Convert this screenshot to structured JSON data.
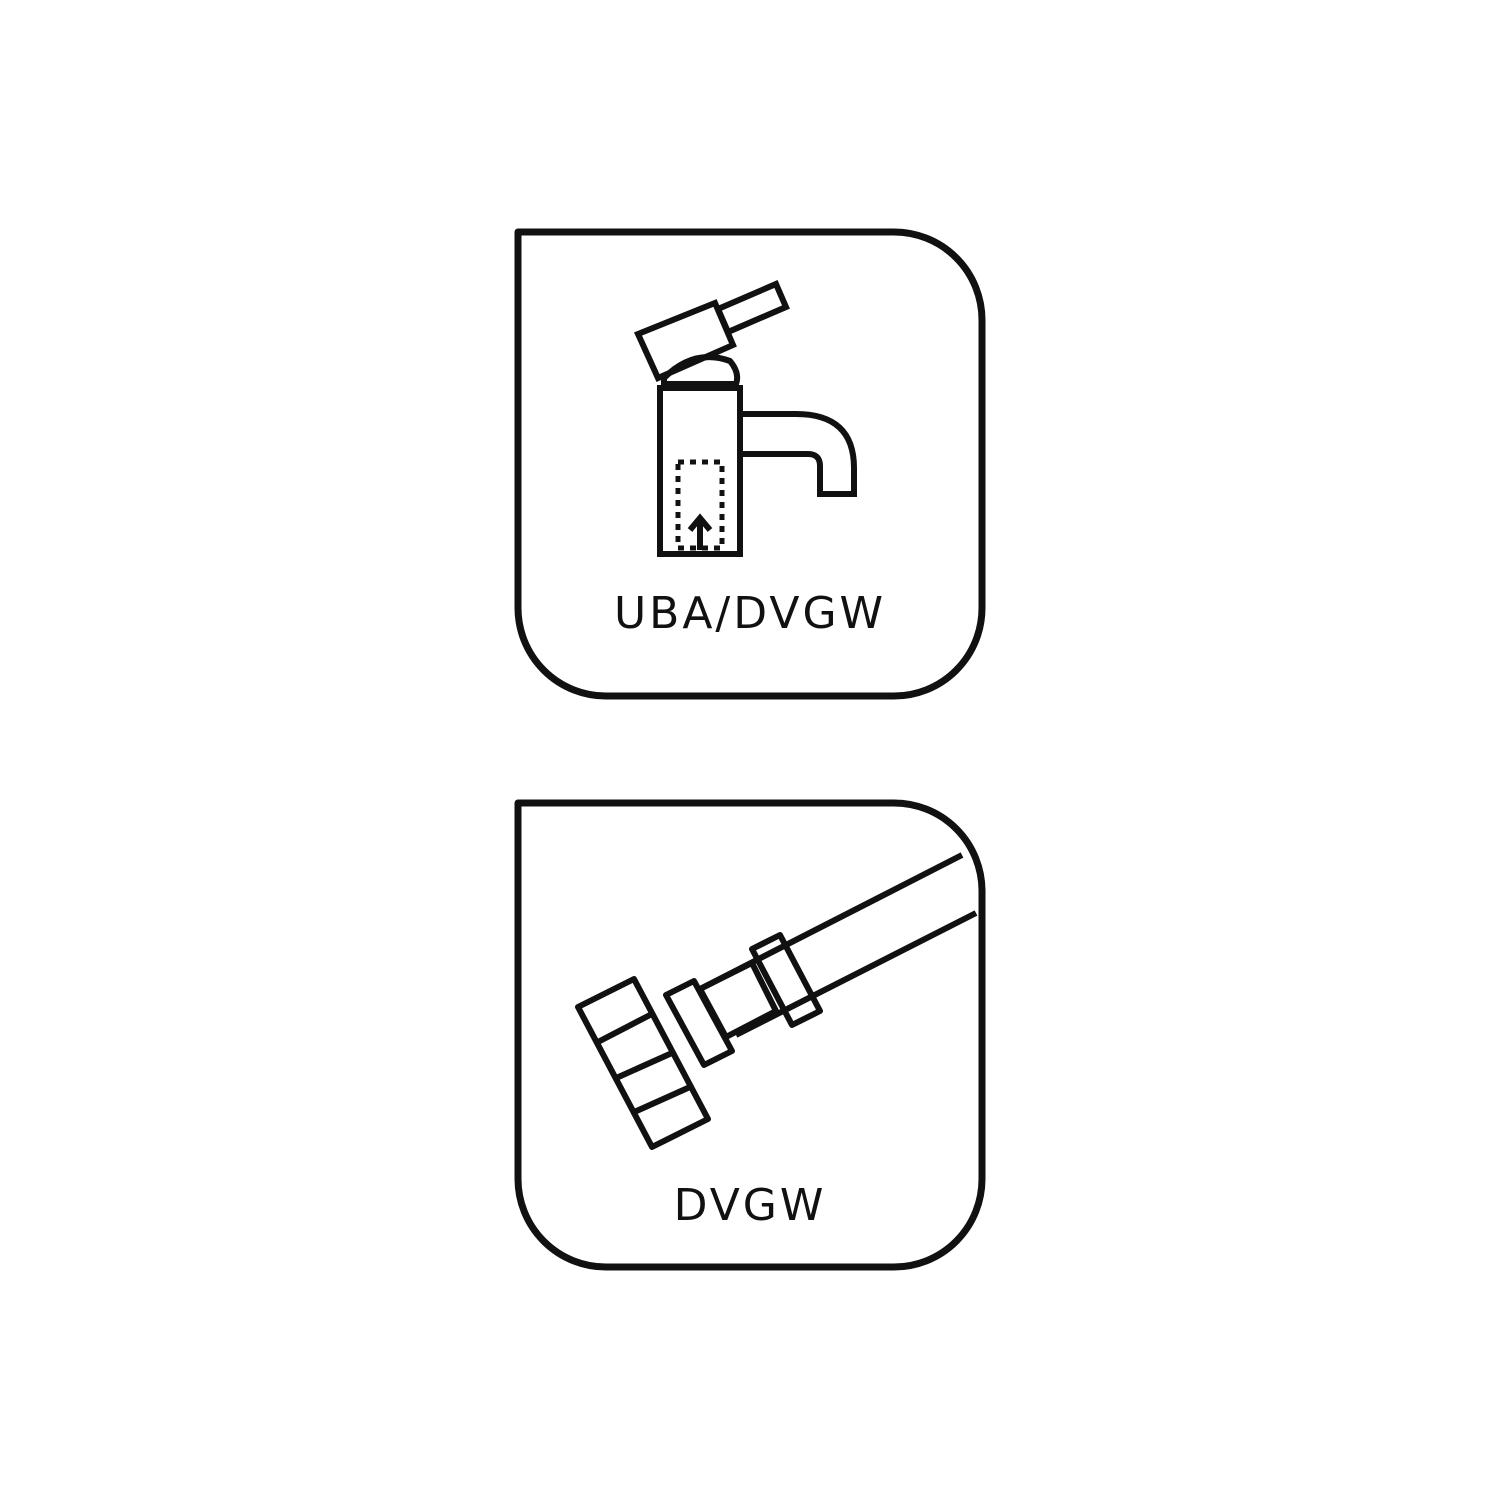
{
  "colors": {
    "stroke": "#111111",
    "background": "#ffffff"
  },
  "badges": [
    {
      "icon": "faucet-icon",
      "label": "UBA/DVGW"
    },
    {
      "icon": "hose-connector-icon",
      "label": "DVGW"
    }
  ]
}
